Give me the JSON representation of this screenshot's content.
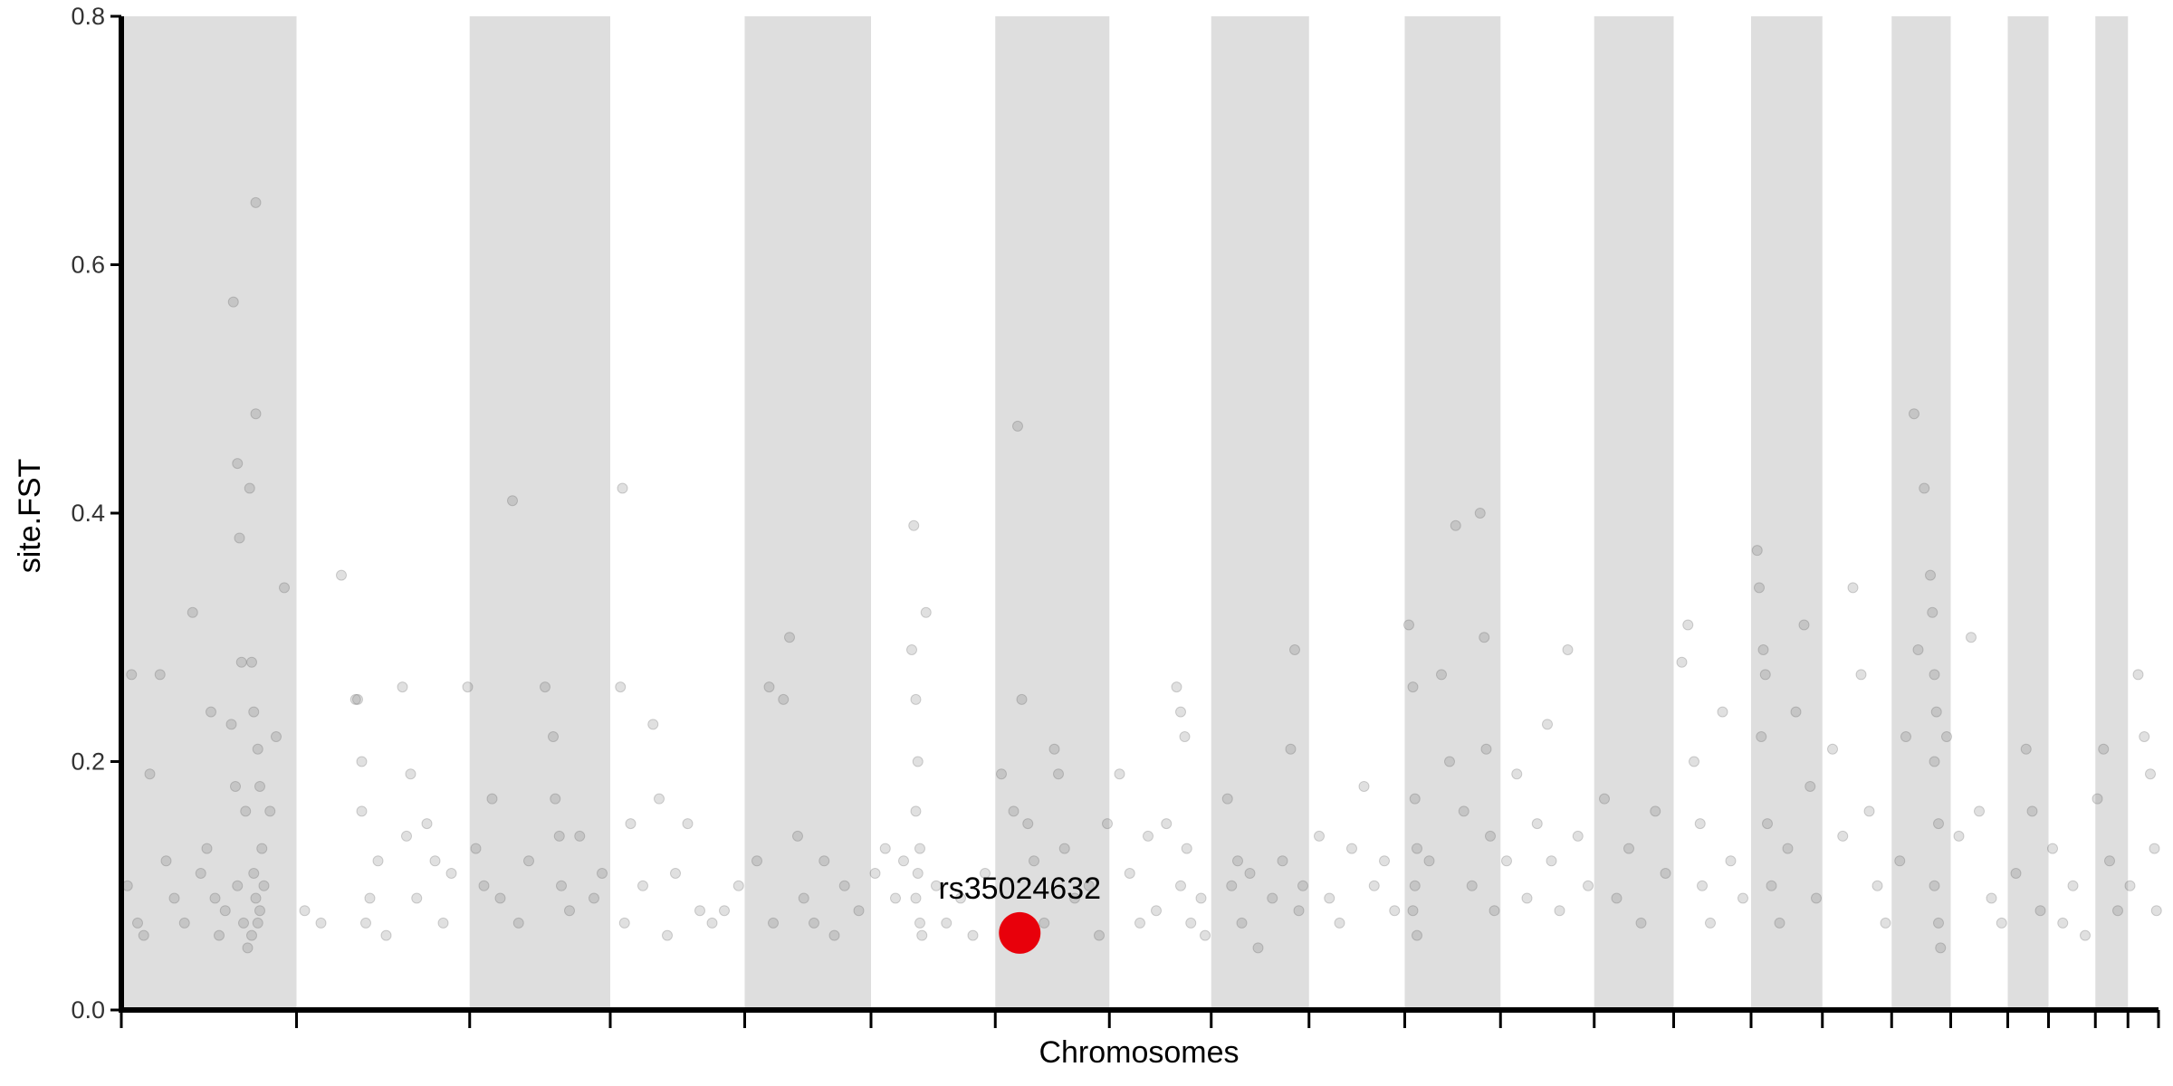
{
  "chart_data": {
    "type": "scatter",
    "title": "",
    "xlabel": "Chromosomes",
    "ylabel": "site.FST",
    "ylim": [
      0,
      0.8
    ],
    "y_ticks": [
      "0.0",
      "0.2",
      "0.4",
      "0.6",
      "0.8"
    ],
    "x_range": [
      0,
      100
    ],
    "chromosome_bands": [
      {
        "start": 0,
        "end": 8.6,
        "shaded": true
      },
      {
        "start": 8.6,
        "end": 17.1,
        "shaded": false
      },
      {
        "start": 17.1,
        "end": 24.0,
        "shaded": true
      },
      {
        "start": 24.0,
        "end": 30.6,
        "shaded": false
      },
      {
        "start": 30.6,
        "end": 36.8,
        "shaded": true
      },
      {
        "start": 36.8,
        "end": 42.9,
        "shaded": false
      },
      {
        "start": 42.9,
        "end": 48.5,
        "shaded": true
      },
      {
        "start": 48.5,
        "end": 53.5,
        "shaded": false
      },
      {
        "start": 53.5,
        "end": 58.3,
        "shaded": true
      },
      {
        "start": 58.3,
        "end": 63.0,
        "shaded": false
      },
      {
        "start": 63.0,
        "end": 67.7,
        "shaded": true
      },
      {
        "start": 67.7,
        "end": 72.3,
        "shaded": false
      },
      {
        "start": 72.3,
        "end": 76.2,
        "shaded": true
      },
      {
        "start": 76.2,
        "end": 80.0,
        "shaded": false
      },
      {
        "start": 80.0,
        "end": 83.5,
        "shaded": true
      },
      {
        "start": 83.5,
        "end": 86.9,
        "shaded": false
      },
      {
        "start": 86.9,
        "end": 89.8,
        "shaded": true
      },
      {
        "start": 89.8,
        "end": 92.6,
        "shaded": false
      },
      {
        "start": 92.6,
        "end": 94.6,
        "shaded": true
      },
      {
        "start": 94.6,
        "end": 96.9,
        "shaded": false
      },
      {
        "start": 96.9,
        "end": 98.5,
        "shaded": true
      },
      {
        "start": 98.5,
        "end": 100,
        "shaded": false
      }
    ],
    "x_ticks": [
      0,
      8.6,
      17.1,
      24.0,
      30.6,
      36.8,
      42.9,
      48.5,
      53.5,
      58.3,
      63.0,
      67.7,
      72.3,
      76.2,
      80.0,
      83.5,
      86.9,
      89.8,
      92.6,
      94.6,
      96.9,
      98.5,
      100
    ],
    "points": [
      [
        0.3,
        0.1
      ],
      [
        0.5,
        0.27
      ],
      [
        0.8,
        0.07
      ],
      [
        1.1,
        0.06
      ],
      [
        1.4,
        0.19
      ],
      [
        1.9,
        0.27
      ],
      [
        2.2,
        0.12
      ],
      [
        2.6,
        0.09
      ],
      [
        3.1,
        0.07
      ],
      [
        3.5,
        0.32
      ],
      [
        3.9,
        0.11
      ],
      [
        4.2,
        0.13
      ],
      [
        4.4,
        0.24
      ],
      [
        4.6,
        0.09
      ],
      [
        4.8,
        0.06
      ],
      [
        5.1,
        0.08
      ],
      [
        5.4,
        0.23
      ],
      [
        5.7,
        0.1
      ],
      [
        6.0,
        0.07
      ],
      [
        6.2,
        0.05
      ],
      [
        6.8,
        0.08
      ],
      [
        5.5,
        0.57
      ],
      [
        5.6,
        0.18
      ],
      [
        5.7,
        0.44
      ],
      [
        5.8,
        0.38
      ],
      [
        5.9,
        0.28
      ],
      [
        6.1,
        0.16
      ],
      [
        6.3,
        0.42
      ],
      [
        6.4,
        0.28
      ],
      [
        6.6,
        0.48
      ],
      [
        6.6,
        0.65
      ],
      [
        6.5,
        0.24
      ],
      [
        6.7,
        0.21
      ],
      [
        6.8,
        0.18
      ],
      [
        6.9,
        0.13
      ],
      [
        7.0,
        0.1
      ],
      [
        6.5,
        0.11
      ],
      [
        6.6,
        0.09
      ],
      [
        6.7,
        0.07
      ],
      [
        6.4,
        0.06
      ],
      [
        7.3,
        0.16
      ],
      [
        7.6,
        0.22
      ],
      [
        8.0,
        0.34
      ],
      [
        9.0,
        0.08
      ],
      [
        9.8,
        0.07
      ],
      [
        10.8,
        0.35
      ],
      [
        11.5,
        0.25
      ],
      [
        11.6,
        0.25
      ],
      [
        11.8,
        0.2
      ],
      [
        11.8,
        0.16
      ],
      [
        12.0,
        0.07
      ],
      [
        12.2,
        0.09
      ],
      [
        12.6,
        0.12
      ],
      [
        13.0,
        0.06
      ],
      [
        13.8,
        0.26
      ],
      [
        14.0,
        0.14
      ],
      [
        14.2,
        0.19
      ],
      [
        14.5,
        0.09
      ],
      [
        15.0,
        0.15
      ],
      [
        15.4,
        0.12
      ],
      [
        15.8,
        0.07
      ],
      [
        16.2,
        0.11
      ],
      [
        17.0,
        0.26
      ],
      [
        17.4,
        0.13
      ],
      [
        17.8,
        0.1
      ],
      [
        18.2,
        0.17
      ],
      [
        18.6,
        0.09
      ],
      [
        19.2,
        0.41
      ],
      [
        19.5,
        0.07
      ],
      [
        20.0,
        0.12
      ],
      [
        20.8,
        0.26
      ],
      [
        21.2,
        0.22
      ],
      [
        21.3,
        0.17
      ],
      [
        21.5,
        0.14
      ],
      [
        21.6,
        0.1
      ],
      [
        22.0,
        0.08
      ],
      [
        22.5,
        0.14
      ],
      [
        23.2,
        0.09
      ],
      [
        23.6,
        0.11
      ],
      [
        24.5,
        0.26
      ],
      [
        24.7,
        0.07
      ],
      [
        24.6,
        0.42
      ],
      [
        25.0,
        0.15
      ],
      [
        25.6,
        0.1
      ],
      [
        26.1,
        0.23
      ],
      [
        26.4,
        0.17
      ],
      [
        26.8,
        0.06
      ],
      [
        27.2,
        0.11
      ],
      [
        27.8,
        0.15
      ],
      [
        28.4,
        0.08
      ],
      [
        29.0,
        0.07
      ],
      [
        29.6,
        0.08
      ],
      [
        30.3,
        0.1
      ],
      [
        31.2,
        0.12
      ],
      [
        31.8,
        0.26
      ],
      [
        32.0,
        0.07
      ],
      [
        32.5,
        0.25
      ],
      [
        32.8,
        0.3
      ],
      [
        33.2,
        0.14
      ],
      [
        33.5,
        0.09
      ],
      [
        34.0,
        0.07
      ],
      [
        34.5,
        0.12
      ],
      [
        35.0,
        0.06
      ],
      [
        35.5,
        0.1
      ],
      [
        36.2,
        0.08
      ],
      [
        37.0,
        0.11
      ],
      [
        37.5,
        0.13
      ],
      [
        38.0,
        0.09
      ],
      [
        38.4,
        0.12
      ],
      [
        38.8,
        0.29
      ],
      [
        38.9,
        0.39
      ],
      [
        39.0,
        0.25
      ],
      [
        39.1,
        0.2
      ],
      [
        39.0,
        0.16
      ],
      [
        39.2,
        0.13
      ],
      [
        39.1,
        0.11
      ],
      [
        39.0,
        0.09
      ],
      [
        39.2,
        0.07
      ],
      [
        39.3,
        0.06
      ],
      [
        39.5,
        0.32
      ],
      [
        40.0,
        0.1
      ],
      [
        40.5,
        0.07
      ],
      [
        41.2,
        0.09
      ],
      [
        41.8,
        0.06
      ],
      [
        42.4,
        0.11
      ],
      [
        43.2,
        0.19
      ],
      [
        43.8,
        0.16
      ],
      [
        44.0,
        0.47
      ],
      [
        44.2,
        0.25
      ],
      [
        44.5,
        0.15
      ],
      [
        44.8,
        0.12
      ],
      [
        45.3,
        0.07
      ],
      [
        45.8,
        0.21
      ],
      [
        46.0,
        0.19
      ],
      [
        46.3,
        0.13
      ],
      [
        46.8,
        0.09
      ],
      [
        47.5,
        0.1
      ],
      [
        48.0,
        0.06
      ],
      [
        48.4,
        0.15
      ],
      [
        49.0,
        0.19
      ],
      [
        49.5,
        0.11
      ],
      [
        50.0,
        0.07
      ],
      [
        50.4,
        0.14
      ],
      [
        50.8,
        0.08
      ],
      [
        51.3,
        0.15
      ],
      [
        51.8,
        0.26
      ],
      [
        52.0,
        0.24
      ],
      [
        52.2,
        0.22
      ],
      [
        52.0,
        0.1
      ],
      [
        52.3,
        0.13
      ],
      [
        52.5,
        0.07
      ],
      [
        53.0,
        0.09
      ],
      [
        53.2,
        0.06
      ],
      [
        54.3,
        0.17
      ],
      [
        54.5,
        0.1
      ],
      [
        54.8,
        0.12
      ],
      [
        55.0,
        0.07
      ],
      [
        55.4,
        0.11
      ],
      [
        55.8,
        0.05
      ],
      [
        56.5,
        0.09
      ],
      [
        57.0,
        0.12
      ],
      [
        57.4,
        0.21
      ],
      [
        57.6,
        0.29
      ],
      [
        57.8,
        0.08
      ],
      [
        58.0,
        0.1
      ],
      [
        58.8,
        0.14
      ],
      [
        59.3,
        0.09
      ],
      [
        59.8,
        0.07
      ],
      [
        60.4,
        0.13
      ],
      [
        61.0,
        0.18
      ],
      [
        61.5,
        0.1
      ],
      [
        62.0,
        0.12
      ],
      [
        62.5,
        0.08
      ],
      [
        63.2,
        0.31
      ],
      [
        63.4,
        0.26
      ],
      [
        63.5,
        0.17
      ],
      [
        63.6,
        0.13
      ],
      [
        63.5,
        0.1
      ],
      [
        63.4,
        0.08
      ],
      [
        63.6,
        0.06
      ],
      [
        64.2,
        0.12
      ],
      [
        64.8,
        0.27
      ],
      [
        65.2,
        0.2
      ],
      [
        65.5,
        0.39
      ],
      [
        65.9,
        0.16
      ],
      [
        66.3,
        0.1
      ],
      [
        66.7,
        0.4
      ],
      [
        66.9,
        0.3
      ],
      [
        67.0,
        0.21
      ],
      [
        67.2,
        0.14
      ],
      [
        67.4,
        0.08
      ],
      [
        68.0,
        0.12
      ],
      [
        68.5,
        0.19
      ],
      [
        69.0,
        0.09
      ],
      [
        69.5,
        0.15
      ],
      [
        70.0,
        0.23
      ],
      [
        70.2,
        0.12
      ],
      [
        70.6,
        0.08
      ],
      [
        71.0,
        0.29
      ],
      [
        71.5,
        0.14
      ],
      [
        72.0,
        0.1
      ],
      [
        72.8,
        0.17
      ],
      [
        73.4,
        0.09
      ],
      [
        74.0,
        0.13
      ],
      [
        74.6,
        0.07
      ],
      [
        75.3,
        0.16
      ],
      [
        75.8,
        0.11
      ],
      [
        76.6,
        0.28
      ],
      [
        76.9,
        0.31
      ],
      [
        77.2,
        0.2
      ],
      [
        77.5,
        0.15
      ],
      [
        77.6,
        0.1
      ],
      [
        78.0,
        0.07
      ],
      [
        78.6,
        0.24
      ],
      [
        79.0,
        0.12
      ],
      [
        79.6,
        0.09
      ],
      [
        80.3,
        0.37
      ],
      [
        80.4,
        0.34
      ],
      [
        80.6,
        0.29
      ],
      [
        80.7,
        0.27
      ],
      [
        80.5,
        0.22
      ],
      [
        80.8,
        0.15
      ],
      [
        81.0,
        0.1
      ],
      [
        81.4,
        0.07
      ],
      [
        81.8,
        0.13
      ],
      [
        82.2,
        0.24
      ],
      [
        82.6,
        0.31
      ],
      [
        82.9,
        0.18
      ],
      [
        83.2,
        0.09
      ],
      [
        84.0,
        0.21
      ],
      [
        84.5,
        0.14
      ],
      [
        85.0,
        0.34
      ],
      [
        85.4,
        0.27
      ],
      [
        85.8,
        0.16
      ],
      [
        86.2,
        0.1
      ],
      [
        86.6,
        0.07
      ],
      [
        87.3,
        0.12
      ],
      [
        87.6,
        0.22
      ],
      [
        88.0,
        0.48
      ],
      [
        88.2,
        0.29
      ],
      [
        88.5,
        0.42
      ],
      [
        88.8,
        0.35
      ],
      [
        88.9,
        0.32
      ],
      [
        89.0,
        0.27
      ],
      [
        89.1,
        0.24
      ],
      [
        89.0,
        0.2
      ],
      [
        89.2,
        0.15
      ],
      [
        89.0,
        0.1
      ],
      [
        89.2,
        0.07
      ],
      [
        89.3,
        0.05
      ],
      [
        89.6,
        0.22
      ],
      [
        90.2,
        0.14
      ],
      [
        90.8,
        0.3
      ],
      [
        91.2,
        0.16
      ],
      [
        91.8,
        0.09
      ],
      [
        92.3,
        0.07
      ],
      [
        93.0,
        0.11
      ],
      [
        93.5,
        0.21
      ],
      [
        93.8,
        0.16
      ],
      [
        94.2,
        0.08
      ],
      [
        94.8,
        0.13
      ],
      [
        95.3,
        0.07
      ],
      [
        95.8,
        0.1
      ],
      [
        96.4,
        0.06
      ],
      [
        97.0,
        0.17
      ],
      [
        97.3,
        0.21
      ],
      [
        97.6,
        0.12
      ],
      [
        98.0,
        0.08
      ],
      [
        98.6,
        0.1
      ],
      [
        99.0,
        0.27
      ],
      [
        99.3,
        0.22
      ],
      [
        99.6,
        0.19
      ],
      [
        99.8,
        0.13
      ],
      [
        99.9,
        0.08
      ]
    ],
    "highlight": {
      "label": "rs35024632",
      "x": 44.1,
      "y": 0.062,
      "color": "#e8000b"
    },
    "grid": false,
    "legend": "none"
  }
}
